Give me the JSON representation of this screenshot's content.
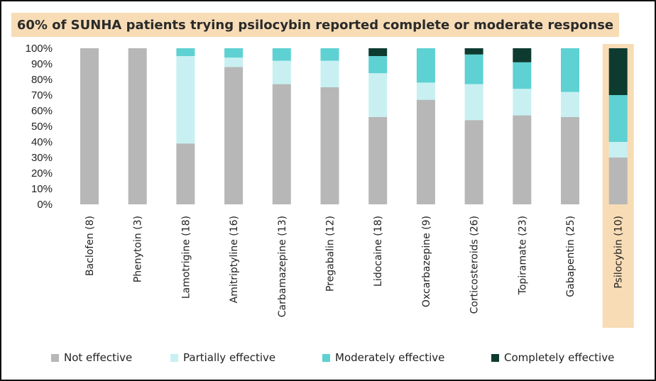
{
  "chart_data": {
    "type": "bar",
    "stacked": true,
    "title": "60% of SUNHA patients trying psilocybin reported complete or moderate response",
    "categories": [
      "Baclofen (8)",
      "Phenytoin (3)",
      "Lamotrigine  (18)",
      "Amitriptyline (16)",
      "Carbamazepine (13)",
      "Pregabalin (12)",
      "Lidocaine (18)",
      "Oxcarbazepine (9)",
      "Corticosteroids (26)",
      "Topiramate (23)",
      "Gabapentin (25)",
      "Psilocybin (10)"
    ],
    "highlighted_category": "Psilocybin (10)",
    "y_ticks": [
      "0%",
      "10%",
      "20%",
      "30%",
      "40%",
      "50%",
      "60%",
      "70%",
      "80%",
      "90%",
      "100%"
    ],
    "ylim": [
      0,
      100
    ],
    "grid": false,
    "legend_position": "bottom",
    "series": [
      {
        "name": "Not effective",
        "color": "#b7b7b7",
        "values": [
          100,
          100,
          39,
          88,
          77,
          75,
          56,
          67,
          54,
          57,
          56,
          30
        ]
      },
      {
        "name": "Partially effective",
        "color": "#c8f0f2",
        "values": [
          0,
          0,
          56,
          6,
          15,
          17,
          28,
          11,
          23,
          17,
          16,
          10
        ]
      },
      {
        "name": "Moderately effective",
        "color": "#5ed1d2",
        "values": [
          0,
          0,
          5,
          6,
          8,
          8,
          11,
          22,
          19,
          17,
          28,
          30
        ]
      },
      {
        "name": "Completely effective",
        "color": "#0e3b30",
        "values": [
          0,
          0,
          0,
          0,
          0,
          0,
          5,
          0,
          4,
          9,
          0,
          30
        ]
      }
    ]
  },
  "colors": {
    "title_band": "#f7dcb6",
    "highlight_band": "#f7dcb6"
  }
}
